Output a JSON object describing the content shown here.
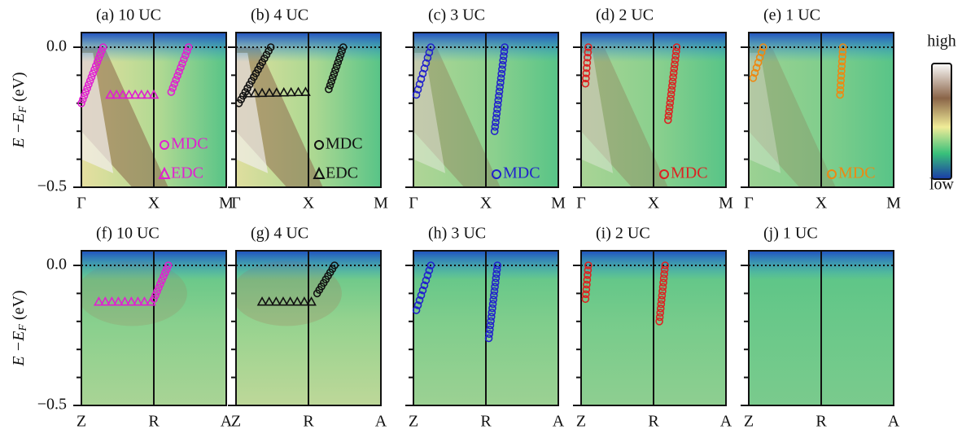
{
  "figure": {
    "panels": [
      {
        "title": "(a) 10 UC",
        "xlabels": [
          "Γ",
          "X",
          "M"
        ],
        "legend": [
          "MDC",
          "EDC"
        ],
        "color": "#e020d0"
      },
      {
        "title": "(b) 4 UC",
        "xlabels": [
          "Γ",
          "X",
          "M"
        ],
        "legend": [
          "MDC",
          "EDC"
        ],
        "color": "#111111"
      },
      {
        "title": "(c) 3 UC",
        "xlabels": [
          "Γ",
          "X",
          "M"
        ],
        "legend": [
          "MDC"
        ],
        "color": "#2222cc"
      },
      {
        "title": "(d) 2 UC",
        "xlabels": [
          "Γ",
          "X",
          "M"
        ],
        "legend": [
          "MDC"
        ],
        "color": "#dd2222"
      },
      {
        "title": "(e) 1 UC",
        "xlabels": [
          "Γ",
          "X",
          "M"
        ],
        "legend": [
          "MDC"
        ],
        "color": "#ee8811"
      },
      {
        "title": "(f) 10 UC",
        "xlabels": [
          "Z",
          "R",
          "A"
        ],
        "color": "#e020d0"
      },
      {
        "title": "(g) 4 UC",
        "xlabels": [
          "Z",
          "R",
          "A"
        ],
        "color": "#111111"
      },
      {
        "title": "(h) 3 UC",
        "xlabels": [
          "Z",
          "R",
          "A"
        ],
        "color": "#2222cc"
      },
      {
        "title": "(i) 2 UC",
        "xlabels": [
          "Z",
          "R",
          "A"
        ],
        "color": "#dd2222"
      },
      {
        "title": "(j) 1 UC",
        "xlabels": [
          "Z",
          "R",
          "A"
        ],
        "color": "#ee8811"
      }
    ],
    "yaxis": {
      "label_parts": [
        "E −E",
        "F",
        " (eV)"
      ],
      "ticks": [
        "0.0",
        "−0.5"
      ]
    },
    "colorbar": {
      "high": "high",
      "low": "low"
    }
  }
}
